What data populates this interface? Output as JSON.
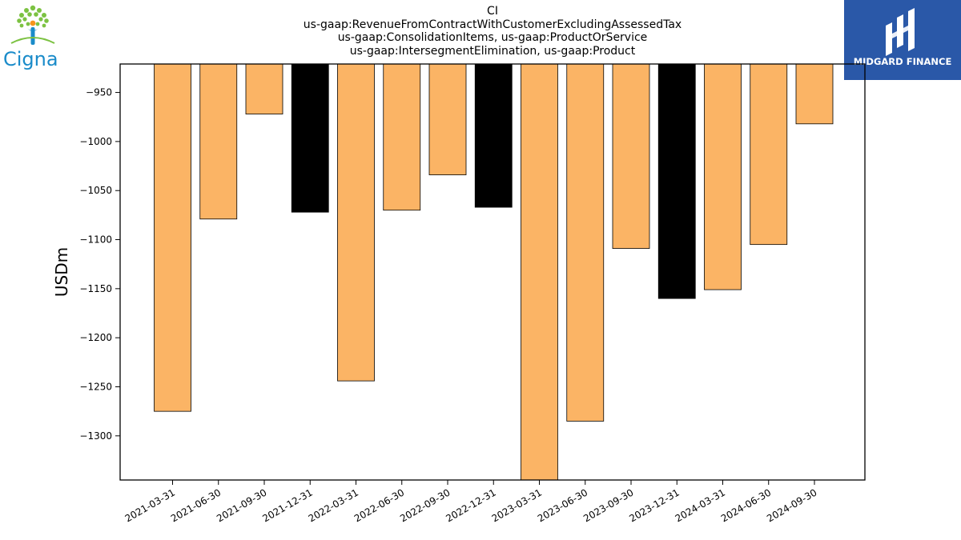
{
  "logos": {
    "left": {
      "text": "Cigna",
      "icon": "cigna-tree-of-life-icon",
      "colors": {
        "tree": "#7cc242",
        "figure": "#f7941d",
        "text": "#1a8bc9"
      }
    },
    "right": {
      "text": "MIDGARD FINANCE",
      "icon": "midgard-monogram-icon",
      "background": "#2a58a8"
    }
  },
  "chart_data": {
    "type": "bar",
    "title_lines": [
      "CI",
      "us-gaap:RevenueFromContractWithCustomerExcludingAssessedTax",
      "us-gaap:ConsolidationItems, us-gaap:ProductOrService",
      "us-gaap:IntersegmentElimination, us-gaap:Product"
    ],
    "xlabel": "",
    "ylabel": "USDm",
    "ylim": [
      -1345,
      -921
    ],
    "yticks": [
      -950,
      -1000,
      -1050,
      -1100,
      -1150,
      -1200,
      -1250,
      -1300
    ],
    "categories": [
      "2021-03-31",
      "2021-06-30",
      "2021-09-30",
      "2021-12-31",
      "2022-03-31",
      "2022-06-30",
      "2022-09-30",
      "2022-12-31",
      "2023-03-31",
      "2023-06-30",
      "2023-09-30",
      "2023-12-31",
      "2024-03-31",
      "2024-06-30",
      "2024-09-30"
    ],
    "values": [
      -1275,
      -1079,
      -972,
      -1072,
      -1244,
      -1070,
      -1034,
      -1067,
      -1345,
      -1285,
      -1109,
      -1160,
      -1151,
      -1105,
      -982
    ],
    "bar_colors": [
      "#fbb465",
      "#fbb465",
      "#fbb465",
      "#000000",
      "#fbb465",
      "#fbb465",
      "#fbb465",
      "#000000",
      "#fbb465",
      "#fbb465",
      "#fbb465",
      "#000000",
      "#fbb465",
      "#fbb465",
      "#fbb465"
    ],
    "colors": {
      "quarter": "#fbb465",
      "year_end": "#000000",
      "edge": "#000000"
    },
    "grid": false,
    "legend": "none"
  }
}
